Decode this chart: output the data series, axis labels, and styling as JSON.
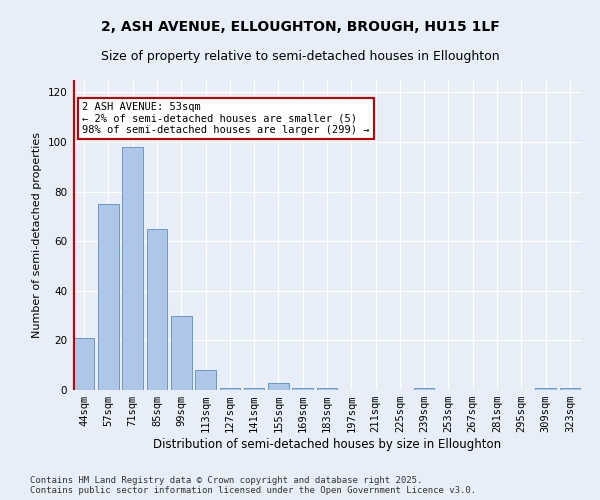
{
  "title1": "2, ASH AVENUE, ELLOUGHTON, BROUGH, HU15 1LF",
  "title2": "Size of property relative to semi-detached houses in Elloughton",
  "xlabel": "Distribution of semi-detached houses by size in Elloughton",
  "ylabel": "Number of semi-detached properties",
  "categories": [
    "44sqm",
    "57sqm",
    "71sqm",
    "85sqm",
    "99sqm",
    "113sqm",
    "127sqm",
    "141sqm",
    "155sqm",
    "169sqm",
    "183sqm",
    "197sqm",
    "211sqm",
    "225sqm",
    "239sqm",
    "253sqm",
    "267sqm",
    "281sqm",
    "295sqm",
    "309sqm",
    "323sqm"
  ],
  "values": [
    21,
    75,
    98,
    65,
    30,
    8,
    1,
    1,
    3,
    1,
    1,
    0,
    0,
    0,
    1,
    0,
    0,
    0,
    0,
    1,
    1
  ],
  "bar_color": "#aec6e8",
  "bar_edge_color": "#5a8fc0",
  "highlight_color": "#cc0000",
  "annotation_text": "2 ASH AVENUE: 53sqm\n← 2% of semi-detached houses are smaller (5)\n98% of semi-detached houses are larger (299) →",
  "annotation_box_color": "white",
  "annotation_box_edge_color": "#cc0000",
  "ylim": [
    0,
    125
  ],
  "yticks": [
    0,
    20,
    40,
    60,
    80,
    100,
    120
  ],
  "background_color": "#e8eef8",
  "footer_text": "Contains HM Land Registry data © Crown copyright and database right 2025.\nContains public sector information licensed under the Open Government Licence v3.0.",
  "title1_fontsize": 10,
  "title2_fontsize": 9,
  "xlabel_fontsize": 8.5,
  "ylabel_fontsize": 8,
  "tick_fontsize": 7.5,
  "annotation_fontsize": 7.5,
  "footer_fontsize": 6.5
}
